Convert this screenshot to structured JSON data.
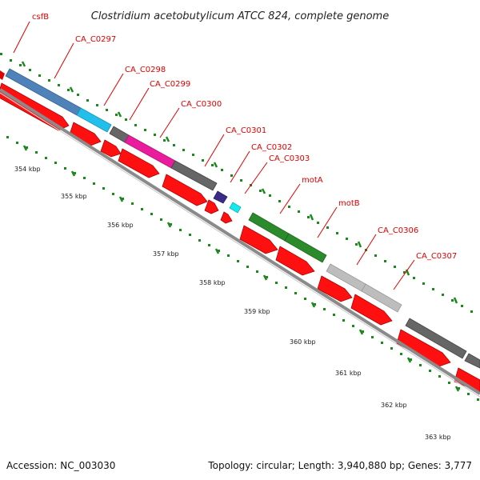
{
  "title": "Clostridium acetobutylicum ATCC 824, complete genome",
  "footer": {
    "accession": "Accession: NC_003030",
    "info": "Topology: circular; Length: 3,940,880 bp; Genes: 3,777"
  },
  "colors": {
    "gene_label": "#e00000",
    "cds_arrow": "#ff0000",
    "tick": "#1a8a1a",
    "backbone": "#888888"
  },
  "genes": [
    {
      "name": "csfB",
      "color": "#e00000"
    },
    {
      "name": "CA_C0297",
      "color": "#4f82b8"
    },
    {
      "name": "CA_C0298",
      "color": "#22bfea"
    },
    {
      "name": "CA_C0299",
      "color": "#666666"
    },
    {
      "name": "CA_C0300",
      "color": "#e81c9c"
    },
    {
      "name": "CA_C0301",
      "color": "#666666"
    },
    {
      "name": "CA_C0302",
      "color": "#3a2c84"
    },
    {
      "name": "CA_C0303",
      "color": "#16e8ef"
    },
    {
      "name": "motA",
      "color": "#2b8a2b"
    },
    {
      "name": "motB",
      "color": "#2b8a2b"
    },
    {
      "name": "CA_C0306",
      "color": "#bdbdbd"
    },
    {
      "name": "CA_C0307",
      "color": "#bdbdbd"
    }
  ],
  "kbp_labels": [
    "354 kbp",
    "355 kbp",
    "356 kbp",
    "357 kbp",
    "358 kbp",
    "359 kbp",
    "360 kbp",
    "361 kbp",
    "362 kbp",
    "363 kbp"
  ]
}
